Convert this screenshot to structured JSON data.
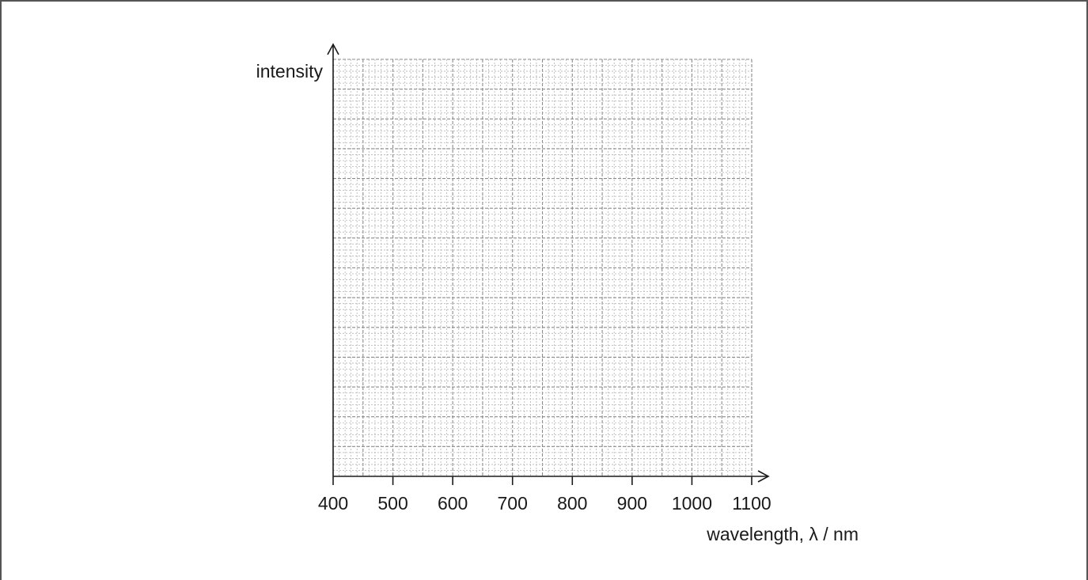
{
  "chart_data": {
    "type": "line",
    "title": "",
    "xlabel": "wavelength, λ / nm",
    "ylabel": "intensity",
    "xlim": [
      400,
      1100
    ],
    "x_ticks": [
      400,
      500,
      600,
      700,
      800,
      900,
      1000,
      1100
    ],
    "x_tick_labels": [
      "400",
      "500",
      "600",
      "700",
      "800",
      "900",
      "1000",
      "1100"
    ],
    "y_ticks": [],
    "series": [],
    "grid": true,
    "colors": {
      "axis": "#1a1a1a",
      "grid_major": "#8c8c8c",
      "grid_minor": "#b4b4b4",
      "text": "#1a1a1a",
      "frame": "#555555"
    }
  }
}
